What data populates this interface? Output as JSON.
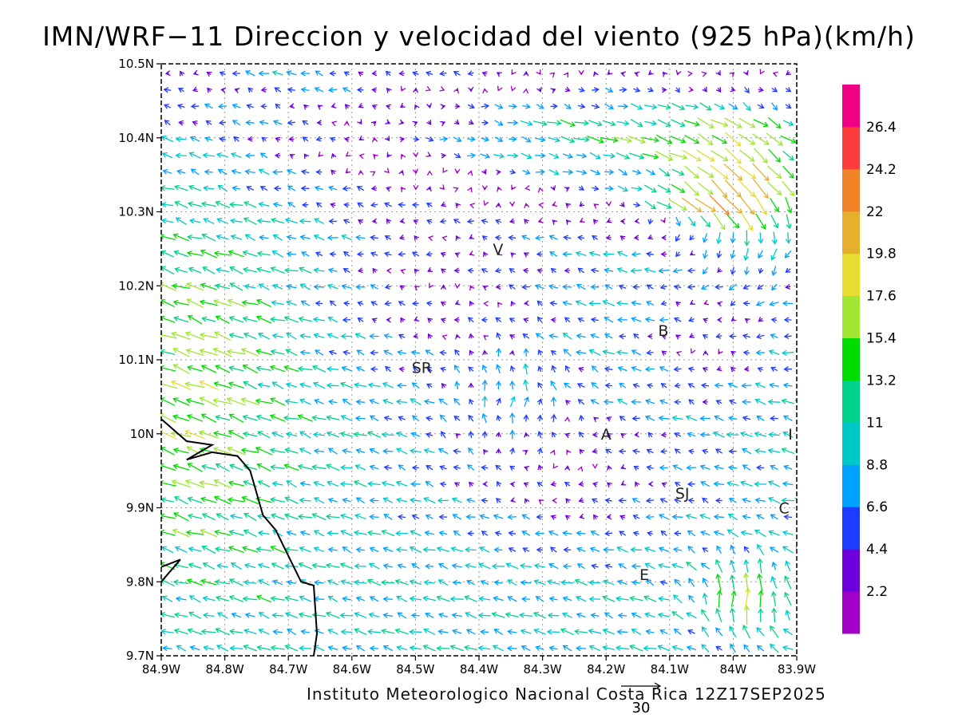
{
  "title": "IMN/WRF−11 Direccion y velocidad del viento (925 hPa)(km/h)",
  "footer": "Instituto Meteorologico Nacional Costa Rica 12Z17SEP2025",
  "reference_vector": {
    "label": "30",
    "speed": 30
  },
  "map": {
    "lon_range": [
      -84.9,
      -83.9
    ],
    "lat_range": [
      9.7,
      10.5
    ],
    "grid": true,
    "x_ticks": [
      "84.9W",
      "84.8W",
      "84.7W",
      "84.6W",
      "84.5W",
      "84.4W",
      "84.3W",
      "84.2W",
      "84.1W",
      "84.0W",
      "83.9W"
    ],
    "x_tick_labels": [
      "84.9W",
      "84.8W",
      "84.7W",
      "84.6W",
      "84.5W",
      "84.4W",
      "84.3W",
      "84.2W",
      "84.1W",
      "84W",
      "83.9W"
    ],
    "y_tick_labels": [
      "9.7N",
      "9.8N",
      "9.9N",
      "10N",
      "10.1N",
      "10.2N",
      "10.3N",
      "10.4N",
      "10.5N"
    ],
    "coastline": [
      [
        -84.9,
        10.02
      ],
      [
        -84.86,
        9.99
      ],
      [
        -84.82,
        9.985
      ],
      [
        -84.86,
        9.965
      ],
      [
        -84.82,
        9.975
      ],
      [
        -84.78,
        9.97
      ],
      [
        -84.76,
        9.95
      ],
      [
        -84.74,
        9.89
      ],
      [
        -84.72,
        9.87
      ],
      [
        -84.68,
        9.8
      ],
      [
        -84.66,
        9.795
      ],
      [
        -84.655,
        9.73
      ],
      [
        -84.66,
        9.7
      ]
    ],
    "coastline_south": [
      [
        -84.9,
        9.82
      ],
      [
        -84.87,
        9.83
      ],
      [
        -84.9,
        9.8
      ]
    ]
  },
  "stations": [
    {
      "label": "V",
      "lon": -84.37,
      "lat": 10.25
    },
    {
      "label": "B",
      "lon": -84.11,
      "lat": 10.14
    },
    {
      "label": "SR",
      "lon": -84.49,
      "lat": 10.09
    },
    {
      "label": "A",
      "lon": -84.2,
      "lat": 10.0
    },
    {
      "label": "SJ",
      "lon": -84.08,
      "lat": 9.92
    },
    {
      "label": "C",
      "lon": -83.92,
      "lat": 9.9
    },
    {
      "label": "E",
      "lon": -84.14,
      "lat": 9.81
    },
    {
      "label": "I",
      "lon": -83.91,
      "lat": 10.0
    }
  ],
  "colorbar": {
    "labels": [
      "2.2",
      "4.4",
      "6.6",
      "8.8",
      "11",
      "13.2",
      "15.4",
      "17.6",
      "19.8",
      "22",
      "24.2",
      "26.4"
    ],
    "thresholds": [
      2.2,
      4.4,
      6.6,
      8.8,
      11,
      13.2,
      15.4,
      17.6,
      19.8,
      22,
      24.2,
      26.4
    ],
    "colors": [
      "#a000c8",
      "#6e00dc",
      "#1e3cff",
      "#00a0ff",
      "#00c8c8",
      "#00d28c",
      "#00dc00",
      "#a0e632",
      "#e6dc32",
      "#e6af2d",
      "#f08228",
      "#fa3c3c",
      "#f00082"
    ]
  },
  "wind_field": {
    "lon_start": -84.89,
    "lon_step": 0.0217,
    "lon_count": 47,
    "lat_start": 9.71,
    "lat_step": 0.0222,
    "lat_count": 36,
    "description_regimes": "easterly to northeasterly flow, strong jet near 10.3N-10.45N east, weak winds centre"
  }
}
